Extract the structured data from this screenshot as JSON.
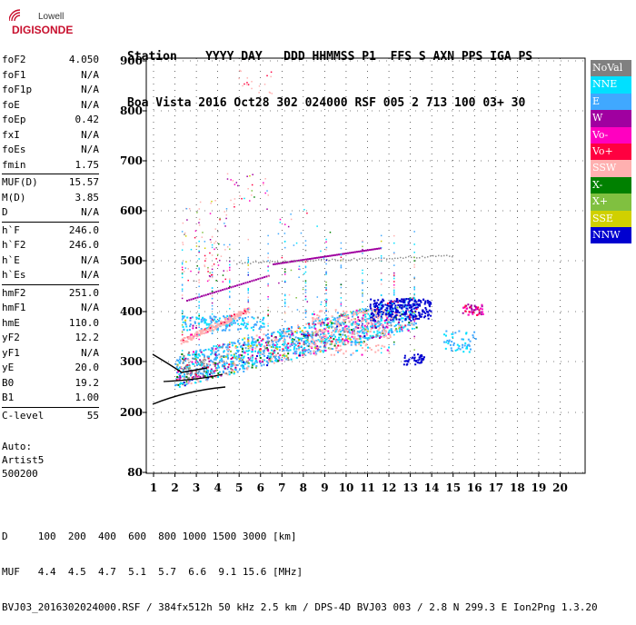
{
  "logo": {
    "line1": "Lowell",
    "line2": "DIGISONDE"
  },
  "header": {
    "labels": "Station    YYYY DAY   DDD HHMMSS P1  FFS S AXN PPS IGA PS",
    "values": "Boa Vista 2016 Oct28 302 024000 RSF 005 2 713 100 03+ 30"
  },
  "params": {
    "group1": [
      {
        "label": "foF2",
        "value": "4.050"
      },
      {
        "label": "foF1",
        "value": "N/A"
      },
      {
        "label": "foF1p",
        "value": "N/A"
      },
      {
        "label": "foE",
        "value": "N/A"
      },
      {
        "label": "foEp",
        "value": "0.42"
      },
      {
        "label": "fxI",
        "value": "N/A"
      },
      {
        "label": "foEs",
        "value": "N/A"
      },
      {
        "label": "fmin",
        "value": "1.75"
      }
    ],
    "group2": [
      {
        "label": "MUF(D)",
        "value": "15.57"
      },
      {
        "label": "M(D)",
        "value": "3.85"
      },
      {
        "label": "D",
        "value": "N/A"
      }
    ],
    "group3": [
      {
        "label": "h`F",
        "value": "246.0"
      },
      {
        "label": "h`F2",
        "value": "246.0"
      },
      {
        "label": "h`E",
        "value": "N/A"
      },
      {
        "label": "h`Es",
        "value": "N/A"
      }
    ],
    "group4": [
      {
        "label": "hmF2",
        "value": "251.0"
      },
      {
        "label": "hmF1",
        "value": "N/A"
      },
      {
        "label": "hmE",
        "value": "110.0"
      },
      {
        "label": "yF2",
        "value": "12.2"
      },
      {
        "label": "yF1",
        "value": "N/A"
      },
      {
        "label": "yE",
        "value": "20.0"
      },
      {
        "label": "B0",
        "value": "19.2"
      },
      {
        "label": "B1",
        "value": "1.00"
      }
    ],
    "group5": [
      {
        "label": "C-level",
        "value": "55"
      }
    ]
  },
  "auto": {
    "line1": "Auto:",
    "line2": "Artist5",
    "line3": "500200"
  },
  "axes": {
    "y_ticks": [
      "900",
      "800",
      "700",
      "600",
      "500",
      "400",
      "300",
      "200",
      "80"
    ],
    "x_ticks": [
      "1",
      "2",
      "3",
      "4",
      "5",
      "6",
      "7",
      "8",
      "9",
      "10",
      "11",
      "12",
      "13",
      "14",
      "15",
      "16",
      "17",
      "18",
      "19",
      "20"
    ]
  },
  "legend": [
    {
      "label": "NoVal",
      "color": "#808080"
    },
    {
      "label": "NNE",
      "color": "#00e0ff"
    },
    {
      "label": "E",
      "color": "#40a8ff"
    },
    {
      "label": "W",
      "color": "#a000a0"
    },
    {
      "label": "Vo-",
      "color": "#ff00c0"
    },
    {
      "label": "Vo+",
      "color": "#ff0040"
    },
    {
      "label": "SSW",
      "color": "#ffb0b0"
    },
    {
      "label": "X-",
      "color": "#008000"
    },
    {
      "label": "X+",
      "color": "#80c040"
    },
    {
      "label": "SSE",
      "color": "#d0d000"
    },
    {
      "label": "NNW",
      "color": "#0000d0"
    }
  ],
  "footer": {
    "line1": "D     100  200  400  600  800 1000 1500 3000 [km]",
    "line2": "MUF   4.4  4.5  4.7  5.1  5.7  6.6  9.1 15.6 [MHz]",
    "line3": "BVJ03_2016302024000.RSF / 384fx512h 50 kHz 2.5 km / DPS-4D BVJ03 003 / 2.8 N 299.3 E Ion2Png 1.3.20"
  }
}
